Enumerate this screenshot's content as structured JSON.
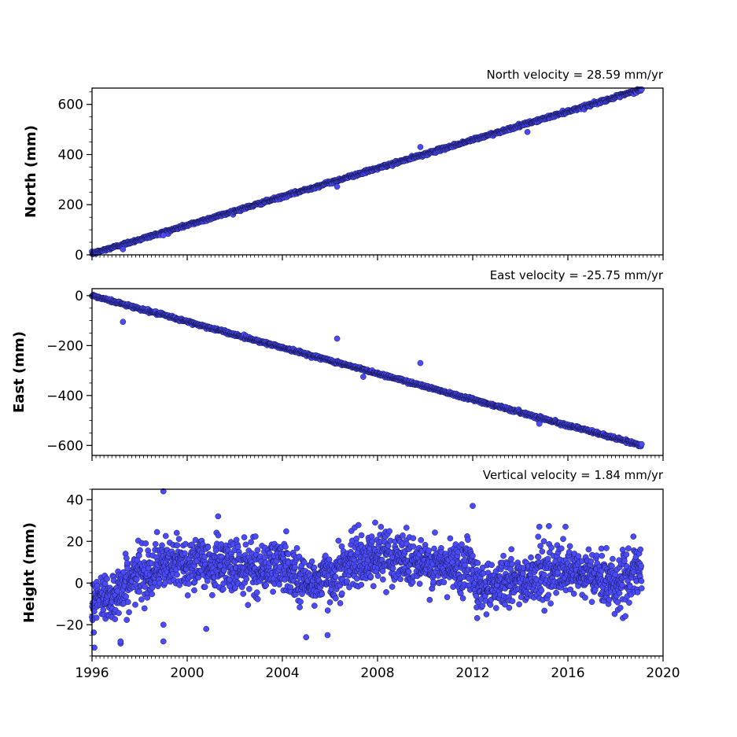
{
  "chart_data": [
    {
      "type": "scatter",
      "panel": "north",
      "title": "North velocity = 28.59 mm/yr",
      "xlabel": "",
      "ylabel": "North (mm)",
      "xlim": [
        1996,
        2020
      ],
      "ylim": [
        0,
        665
      ],
      "x_ticks": [
        1996,
        2000,
        2004,
        2008,
        2012,
        2016,
        2020
      ],
      "y_ticks": [
        0,
        200,
        400,
        600
      ],
      "y_tick_labels": [
        "0",
        "200",
        "400",
        "600"
      ],
      "y_minor_step": 50,
      "show_x_tick_labels": false,
      "trend": {
        "start": [
          1996.0,
          5
        ],
        "end": [
          2019.1,
          660
        ],
        "noise": 3
      },
      "x_range": [
        1996.0,
        2019.1
      ],
      "outliers": [
        [
          1997.3,
          22
        ],
        [
          1999.0,
          78
        ],
        [
          2006.3,
          272
        ],
        [
          2009.8,
          430
        ],
        [
          2014.3,
          490
        ]
      ],
      "series": [
        {
          "color": "#4a4af7"
        }
      ]
    },
    {
      "type": "scatter",
      "panel": "east",
      "title": "East velocity = -25.75 mm/yr",
      "xlabel": "",
      "ylabel": "East (mm)",
      "xlim": [
        1996,
        2020
      ],
      "ylim": [
        -640,
        28
      ],
      "x_ticks": [
        1996,
        2000,
        2004,
        2008,
        2012,
        2016,
        2020
      ],
      "y_ticks": [
        0,
        -200,
        -400,
        -600
      ],
      "y_tick_labels": [
        "0",
        "−200",
        "−400",
        "−600"
      ],
      "y_minor_step": 50,
      "show_x_tick_labels": false,
      "trend": {
        "start": [
          1996.0,
          0
        ],
        "end": [
          2019.1,
          -600
        ],
        "noise": 3
      },
      "x_range": [
        1996.0,
        2019.1
      ],
      "outliers": [
        [
          1997.3,
          -105
        ],
        [
          2006.3,
          -172
        ],
        [
          2007.4,
          -325
        ],
        [
          2009.8,
          -270
        ],
        [
          2014.8,
          -513
        ]
      ],
      "series": [
        {
          "color": "#4a4af7"
        }
      ]
    },
    {
      "type": "scatter",
      "panel": "height",
      "title": "Vertical velocity = 1.84 mm/yr",
      "xlabel": "",
      "ylabel": "Height (mm)",
      "xlim": [
        1996,
        2020
      ],
      "ylim": [
        -35,
        45
      ],
      "x_ticks": [
        1996,
        2000,
        2004,
        2008,
        2012,
        2016,
        2020
      ],
      "x_tick_labels": [
        "1996",
        "2000",
        "2004",
        "2008",
        "2012",
        "2016",
        "2020"
      ],
      "y_ticks": [
        -20,
        0,
        20,
        40
      ],
      "y_tick_labels": [
        "−20",
        "0",
        "20",
        "40"
      ],
      "y_minor_step": 5,
      "show_x_tick_labels": true,
      "x_range": [
        1996.0,
        2019.1
      ],
      "segments": [
        [
          1996.0,
          -10
        ],
        [
          1997.0,
          -5
        ],
        [
          1998.0,
          5
        ],
        [
          1999.0,
          8
        ],
        [
          2000.0,
          10
        ],
        [
          2001.0,
          9
        ],
        [
          2002.0,
          8
        ],
        [
          2003.0,
          7
        ],
        [
          2004.0,
          9
        ],
        [
          2005.0,
          0
        ],
        [
          2006.0,
          3
        ],
        [
          2007.0,
          10
        ],
        [
          2008.0,
          13
        ],
        [
          2009.0,
          13
        ],
        [
          2010.0,
          8
        ],
        [
          2011.0,
          7
        ],
        [
          2012.0,
          10
        ],
        [
          2012.2,
          -2
        ],
        [
          2013.0,
          0
        ],
        [
          2014.0,
          1
        ],
        [
          2015.0,
          6
        ],
        [
          2016.0,
          4
        ],
        [
          2017.0,
          4
        ],
        [
          2018.0,
          0
        ],
        [
          2019.1,
          6
        ]
      ],
      "noise": 6,
      "outliers": [
        [
          1996.1,
          -31
        ],
        [
          1997.2,
          -29
        ],
        [
          1997.2,
          -28
        ],
        [
          1999.0,
          44
        ],
        [
          1999.0,
          -28
        ],
        [
          1999.0,
          -20
        ],
        [
          2001.3,
          32
        ],
        [
          2000.8,
          -22
        ],
        [
          2005.0,
          -26
        ],
        [
          2005.9,
          -25
        ],
        [
          2012.0,
          37
        ],
        [
          2014.8,
          27
        ],
        [
          2015.9,
          27
        ],
        [
          2007.9,
          29
        ]
      ],
      "series": [
        {
          "color": "#4a4af7"
        }
      ]
    }
  ]
}
